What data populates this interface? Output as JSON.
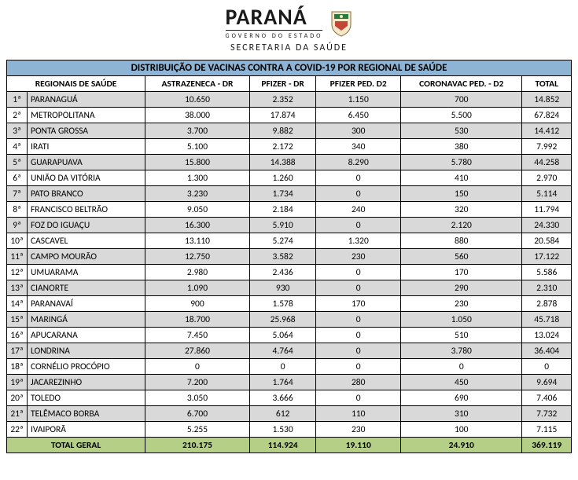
{
  "header": {
    "brand": "PARANÁ",
    "subtitle": "GOVERNO DO ESTADO",
    "secretaria": "SECRETARIA DA SAÚDE"
  },
  "table": {
    "title": "DISTRIBUIÇÃO DE VACINAS CONTRA A COVID-19 POR REGIONAL DE SAÚDE",
    "columns": [
      "REGIONAIS DE SAÚDE",
      "ASTRAZENECA - DR",
      "PFIZER - DR",
      "PFIZER PED. D2",
      "CORONAVAC PED. - D2",
      "TOTAL"
    ],
    "rows": [
      {
        "num": "1ª",
        "name": "PARANAGUÁ",
        "v": [
          "10.650",
          "2.352",
          "1.150",
          "700",
          "14.852"
        ]
      },
      {
        "num": "2ª",
        "name": "METROPOLITANA",
        "v": [
          "38.000",
          "17.874",
          "6.450",
          "5.500",
          "67.824"
        ]
      },
      {
        "num": "3ª",
        "name": "PONTA GROSSA",
        "v": [
          "3.700",
          "9.882",
          "300",
          "530",
          "14.412"
        ]
      },
      {
        "num": "4ª",
        "name": "IRATI",
        "v": [
          "5.100",
          "2.172",
          "340",
          "380",
          "7.992"
        ]
      },
      {
        "num": "5ª",
        "name": "GUARAPUAVA",
        "v": [
          "15.800",
          "14.388",
          "8.290",
          "5.780",
          "44.258"
        ]
      },
      {
        "num": "6ª",
        "name": "UNIÃO DA VITÓRIA",
        "v": [
          "1.300",
          "1.260",
          "0",
          "410",
          "2.970"
        ]
      },
      {
        "num": "7ª",
        "name": "PATO BRANCO",
        "v": [
          "3.230",
          "1.734",
          "0",
          "150",
          "5.114"
        ]
      },
      {
        "num": "8ª",
        "name": "FRANCISCO BELTRÃO",
        "v": [
          "9.050",
          "2.184",
          "240",
          "320",
          "11.794"
        ]
      },
      {
        "num": "9ª",
        "name": "FOZ DO IGUAÇU",
        "v": [
          "16.300",
          "5.910",
          "0",
          "2.120",
          "24.330"
        ]
      },
      {
        "num": "10ª",
        "name": "CASCAVEL",
        "v": [
          "13.110",
          "5.274",
          "1.320",
          "880",
          "20.584"
        ]
      },
      {
        "num": "11ª",
        "name": "CAMPO MOURÃO",
        "v": [
          "12.750",
          "3.582",
          "230",
          "560",
          "17.122"
        ]
      },
      {
        "num": "12ª",
        "name": "UMUARAMA",
        "v": [
          "2.980",
          "2.436",
          "0",
          "170",
          "5.586"
        ]
      },
      {
        "num": "13ª",
        "name": "CIANORTE",
        "v": [
          "1.090",
          "930",
          "0",
          "290",
          "2.310"
        ]
      },
      {
        "num": "14ª",
        "name": "PARANAVAÍ",
        "v": [
          "900",
          "1.578",
          "170",
          "230",
          "2.878"
        ]
      },
      {
        "num": "15ª",
        "name": "MARINGÁ",
        "v": [
          "18.700",
          "25.968",
          "0",
          "1.050",
          "45.718"
        ]
      },
      {
        "num": "16ª",
        "name": "APUCARANA",
        "v": [
          "7.450",
          "5.064",
          "0",
          "510",
          "13.024"
        ]
      },
      {
        "num": "17ª",
        "name": "LONDRINA",
        "v": [
          "27.860",
          "4.764",
          "0",
          "3.780",
          "36.404"
        ]
      },
      {
        "num": "18ª",
        "name": "CORNÉLIO PROCÓPIO",
        "v": [
          "0",
          "0",
          "0",
          "0",
          "0"
        ]
      },
      {
        "num": "19ª",
        "name": "JACAREZINHO",
        "v": [
          "7.200",
          "1.764",
          "280",
          "450",
          "9.694"
        ]
      },
      {
        "num": "20ª",
        "name": "TOLEDO",
        "v": [
          "3.050",
          "3.666",
          "0",
          "690",
          "7.406"
        ]
      },
      {
        "num": "21ª",
        "name": "TELÊMACO BORBA",
        "v": [
          "6.700",
          "612",
          "110",
          "310",
          "7.732"
        ]
      },
      {
        "num": "22ª",
        "name": "IVAIPORÃ",
        "v": [
          "5.255",
          "1.530",
          "230",
          "100",
          "7.115"
        ]
      }
    ],
    "total": {
      "label": "TOTAL GERAL",
      "v": [
        "210.175",
        "114.924",
        "19.110",
        "24.910",
        "369.119"
      ]
    }
  },
  "colors": {
    "title_bg": "#8db4d4",
    "odd_bg": "#d9d9d9",
    "even_bg": "#ffffff",
    "total_bg": "#b5cf87",
    "border": "#000000"
  }
}
